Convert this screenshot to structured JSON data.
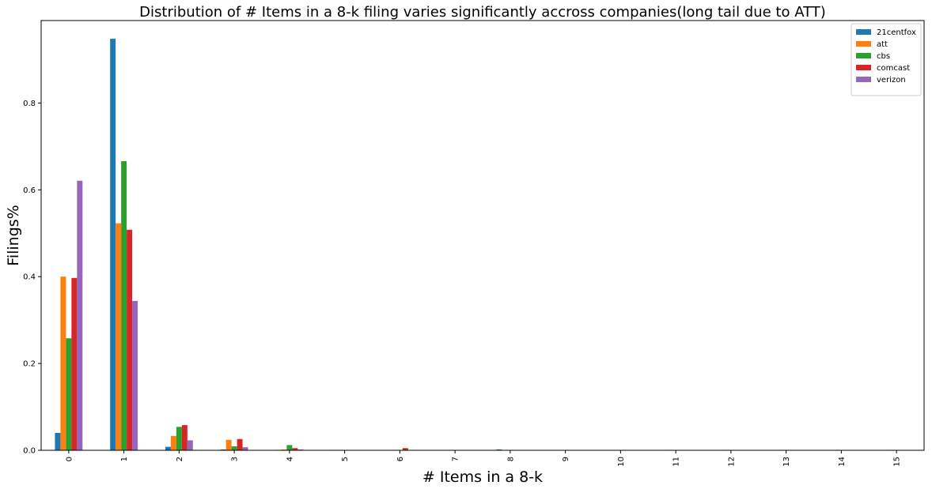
{
  "chart_data": {
    "type": "bar",
    "title": "Distribution of # Items in a 8-k filing varies significantly accross companies(long tail due to ATT)",
    "xlabel": "# Items in a 8-k",
    "ylabel": "Filings%",
    "categories": [
      "0",
      "1",
      "2",
      "3",
      "4",
      "5",
      "6",
      "7",
      "8",
      "9",
      "10",
      "11",
      "12",
      "13",
      "14",
      "15"
    ],
    "ylim": [
      0,
      0.99
    ],
    "yticks": [
      0.0,
      0.2,
      0.4,
      0.6,
      0.8
    ],
    "ytick_labels": [
      "0.0",
      "0.2",
      "0.4",
      "0.6",
      "0.8"
    ],
    "grid": false,
    "legend_position": "top-right",
    "series": [
      {
        "name": "21centfox",
        "color": "#1f77b4",
        "values": [
          0.04,
          0.948,
          0.008,
          0.002,
          0.001,
          0.001,
          0,
          0,
          0.002,
          0,
          0,
          0,
          0,
          0,
          0,
          0
        ]
      },
      {
        "name": "att",
        "color": "#ff7f0e",
        "values": [
          0.4,
          0.523,
          0.033,
          0.024,
          0.002,
          0.001,
          0.001,
          0,
          0,
          0,
          0,
          0.001,
          0.001,
          0.001,
          0.001,
          0.001
        ]
      },
      {
        "name": "cbs",
        "color": "#2ca02c",
        "values": [
          0.258,
          0.666,
          0.054,
          0.009,
          0.012,
          0,
          0,
          0,
          0,
          0,
          0,
          0,
          0,
          0,
          0,
          0
        ]
      },
      {
        "name": "comcast",
        "color": "#d62728",
        "values": [
          0.397,
          0.508,
          0.058,
          0.026,
          0.005,
          0,
          0.005,
          0,
          0,
          0,
          0,
          0,
          0,
          0,
          0,
          0
        ]
      },
      {
        "name": "verizon",
        "color": "#9467bd",
        "values": [
          0.621,
          0.344,
          0.023,
          0.007,
          0.002,
          0,
          0,
          0,
          0,
          0,
          0,
          0,
          0,
          0,
          0,
          0
        ]
      }
    ]
  }
}
